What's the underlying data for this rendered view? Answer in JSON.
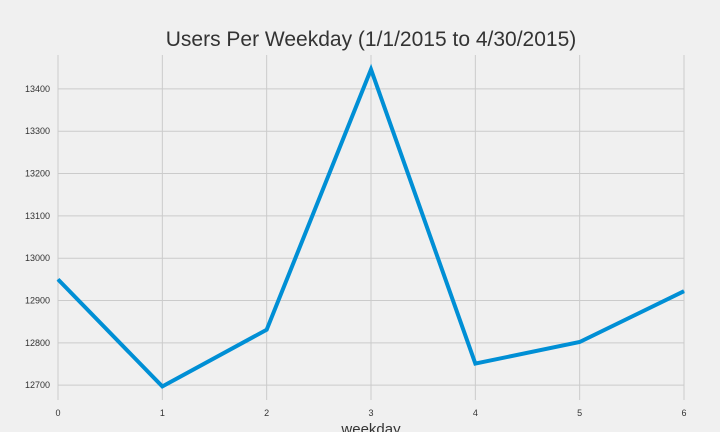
{
  "chart_data": {
    "type": "line",
    "title": "Users Per Weekday (1/1/2015 to 4/30/2015)",
    "xlabel": "weekday",
    "ylabel": "",
    "x": [
      0,
      1,
      2,
      3,
      4,
      5,
      6
    ],
    "xticks": [
      "0",
      "1",
      "2",
      "3",
      "4",
      "5",
      "6"
    ],
    "yticks": [
      "12700",
      "12800",
      "12900",
      "13000",
      "13100",
      "13200",
      "13300",
      "13400"
    ],
    "ytick_values": [
      12700,
      12800,
      12900,
      13000,
      13100,
      13200,
      13300,
      13400
    ],
    "xlim": [
      0,
      6
    ],
    "ylim": [
      12665,
      13480
    ],
    "grid": true,
    "series": [
      {
        "values": [
          12950,
          12697,
          12831,
          13446,
          12751,
          12802,
          12922
        ],
        "color": "#008fd5"
      }
    ]
  }
}
